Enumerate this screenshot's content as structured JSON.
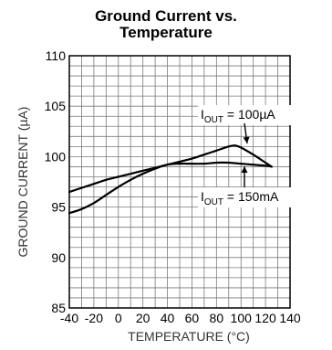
{
  "chart_data": {
    "type": "line",
    "title_lines": [
      "Ground Current vs.",
      "Temperature"
    ],
    "xlabel": "TEMPERATURE (°C)",
    "ylabel": "GROUND CURRENT (µA)",
    "xlim": [
      -40,
      140
    ],
    "ylim": [
      85,
      110
    ],
    "xticks": [
      -40,
      -20,
      0,
      20,
      40,
      60,
      80,
      100,
      120,
      140
    ],
    "xtick_labels": [
      "-40",
      "-20",
      "0",
      "20",
      "40",
      "60",
      "80",
      "100",
      "120",
      "140"
    ],
    "yticks": [
      85,
      90,
      95,
      100,
      105,
      110
    ],
    "ytick_labels": [
      "85",
      "90",
      "95",
      "100",
      "105",
      "110"
    ],
    "grid": true,
    "minor_grid_step_x": 10,
    "minor_grid_step_y": 1,
    "series": [
      {
        "x": [
          -40,
          -30,
          -20,
          -10,
          0,
          10,
          20,
          30,
          40,
          50,
          60,
          70,
          80,
          90,
          95,
          100,
          110,
          120,
          125
        ],
        "y": [
          96.5,
          96.9,
          97.3,
          97.7,
          98.0,
          98.3,
          98.6,
          98.9,
          99.2,
          99.5,
          99.8,
          100.2,
          100.6,
          101.0,
          101.1,
          100.9,
          100.2,
          99.4,
          99.0
        ]
      },
      {
        "x": [
          -40,
          -30,
          -20,
          -10,
          0,
          10,
          20,
          30,
          40,
          50,
          60,
          70,
          80,
          90,
          100,
          110,
          120,
          125
        ],
        "y": [
          94.4,
          94.8,
          95.4,
          96.2,
          97.0,
          97.7,
          98.3,
          98.8,
          99.2,
          99.3,
          99.3,
          99.3,
          99.4,
          99.4,
          99.3,
          99.2,
          99.1,
          99.0
        ]
      }
    ],
    "annotations": [
      {
        "sub_base": "I",
        "sub": "OUT",
        "rest": " = 100µA",
        "points_to_series": 0
      },
      {
        "sub_base": "I",
        "sub": "OUT",
        "rest": " = 150mA",
        "points_to_series": 1
      }
    ],
    "colors": {
      "line": "#000000",
      "grid": "#7a7a7a",
      "frame": "#000000"
    }
  }
}
